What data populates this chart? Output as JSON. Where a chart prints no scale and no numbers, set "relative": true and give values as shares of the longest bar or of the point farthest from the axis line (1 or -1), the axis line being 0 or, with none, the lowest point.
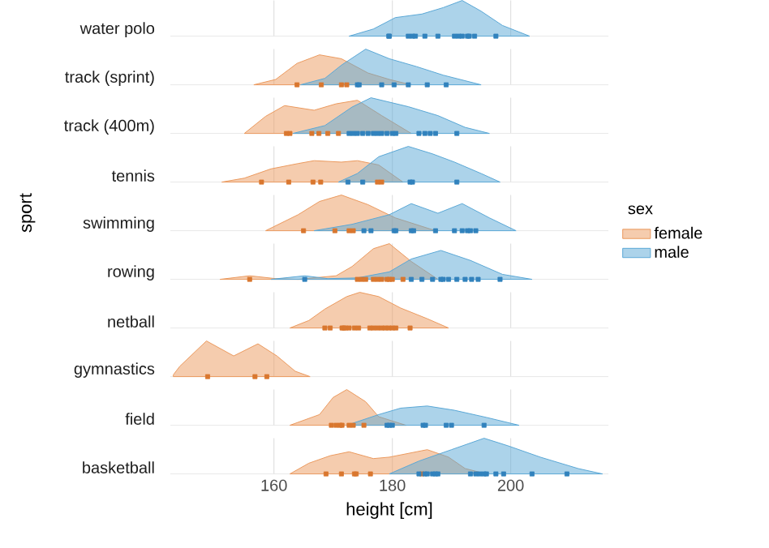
{
  "chart_data": [
    {
      "type": "area",
      "title": "water polo",
      "relative": true,
      "xlim": [
        142.5,
        216.5
      ],
      "xticks": [
        160,
        180,
        200
      ],
      "grid": "x",
      "tick_labels": false,
      "series": [
        {
          "color": "#5aa8d6",
          "x": [
            172.7,
            176.8,
            180.5,
            185,
            188.6,
            191.8,
            195,
            198.6,
            203.2
          ],
          "values": [
            0,
            0.2,
            0.52,
            0.62,
            0.8,
            1,
            0.7,
            0.3,
            0
          ]
        },
        {
          "type": "scatter",
          "marker": "square",
          "color": "#3182bd",
          "x": [
            179.4,
            179.5,
            182.7,
            183.4,
            183.9,
            185.5,
            187.7,
            190.5,
            191.2,
            191.8,
            192.7,
            193,
            193.9,
            197.5
          ],
          "values": [
            0,
            0,
            0,
            0,
            0,
            0,
            0,
            0,
            0,
            0,
            0,
            0,
            0,
            0
          ]
        }
      ]
    },
    {
      "type": "area",
      "title": "track (sprint)",
      "relative": true,
      "xlim": [
        142.5,
        216.5
      ],
      "xticks": [
        160,
        180,
        200
      ],
      "grid": "x",
      "tick_labels": false,
      "series": [
        {
          "color": "#eb9a5e",
          "x": [
            156.6,
            160.3,
            163.9,
            167.7,
            171.4,
            175.9,
            179.5,
            183.2
          ],
          "values": [
            0,
            0.15,
            0.6,
            0.84,
            0.73,
            0.33,
            0.15,
            0
          ]
        },
        {
          "color": "#5aa8d6",
          "x": [
            164.5,
            168.6,
            171.4,
            175.5,
            179.5,
            184.1,
            188.6,
            195
          ],
          "values": [
            0,
            0.18,
            0.55,
            1,
            0.73,
            0.51,
            0.27,
            0
          ]
        },
        {
          "type": "scatter",
          "marker": "square",
          "color": "#d9772f",
          "x": [
            163.9,
            168,
            171.4,
            172.3
          ],
          "values": [
            0,
            0,
            0,
            0
          ]
        },
        {
          "type": "scatter",
          "marker": "square",
          "color": "#3182bd",
          "x": [
            174.1,
            174.4,
            178.2,
            180.3,
            182.7,
            185.9,
            189.1
          ],
          "values": [
            0,
            0,
            0,
            0,
            0,
            0,
            0
          ]
        }
      ]
    },
    {
      "type": "area",
      "title": "track (400m)",
      "relative": true,
      "xlim": [
        142.5,
        216.5
      ],
      "xticks": [
        160,
        180,
        200
      ],
      "grid": "x",
      "tick_labels": false,
      "series": [
        {
          "color": "#eb9a5e",
          "x": [
            155,
            158.6,
            161.8,
            166.8,
            170.5,
            174.1,
            178.2,
            183.2
          ],
          "values": [
            0,
            0.48,
            0.78,
            0.65,
            0.83,
            0.93,
            0.5,
            0
          ]
        },
        {
          "color": "#5aa8d6",
          "x": [
            163.2,
            168.6,
            173.2,
            176.4,
            182.7,
            187.7,
            192.3,
            196.4
          ],
          "values": [
            0,
            0.22,
            0.74,
            1,
            0.75,
            0.5,
            0.17,
            0
          ]
        },
        {
          "type": "scatter",
          "marker": "square",
          "color": "#d9772f",
          "x": [
            162.1,
            162.7,
            166.4,
            167.6,
            169.1,
            170.9
          ],
          "values": [
            0,
            0,
            0,
            0,
            0,
            0
          ]
        },
        {
          "type": "scatter",
          "marker": "square",
          "color": "#3182bd",
          "x": [
            172.7,
            173.4,
            174.1,
            175,
            175.9,
            176.8,
            177.5,
            178.2,
            179.1,
            180,
            180.6,
            184.5,
            185.5,
            186.4,
            187.3,
            190.9
          ],
          "values": [
            0,
            0,
            0,
            0,
            0,
            0,
            0,
            0,
            0,
            0,
            0,
            0,
            0,
            0,
            0,
            0
          ]
        }
      ]
    },
    {
      "type": "area",
      "title": "tennis",
      "relative": true,
      "xlim": [
        142.5,
        216.5
      ],
      "xticks": [
        160,
        180,
        200
      ],
      "grid": "x",
      "tick_labels": false,
      "series": [
        {
          "color": "#eb9a5e",
          "x": [
            151.2,
            155,
            159.5,
            164.1,
            166.8,
            171.4,
            174.1,
            177.7,
            181.8
          ],
          "values": [
            0,
            0.11,
            0.37,
            0.52,
            0.6,
            0.56,
            0.6,
            0.48,
            0
          ]
        },
        {
          "color": "#5aa8d6",
          "x": [
            170.9,
            174.1,
            177.7,
            182.7,
            186.8,
            190.5,
            195,
            198.2
          ],
          "values": [
            0,
            0.24,
            0.71,
            1,
            0.79,
            0.56,
            0.24,
            0
          ]
        },
        {
          "type": "scatter",
          "marker": "square",
          "color": "#d9772f",
          "x": [
            157.9,
            162.5,
            166.6,
            167.9,
            177.5,
            178.2
          ],
          "values": [
            0,
            0,
            0,
            0,
            0,
            0
          ]
        },
        {
          "type": "scatter",
          "marker": "square",
          "color": "#3182bd",
          "x": [
            172.5,
            175,
            183,
            183.4,
            190.9
          ],
          "values": [
            0,
            0,
            0,
            0,
            0
          ]
        }
      ]
    },
    {
      "type": "area",
      "title": "swimming",
      "ylabel": "sport",
      "legend": "right",
      "legend_title": "sex",
      "relative": true,
      "xlim": [
        142.5,
        216.5
      ],
      "xticks": [
        160,
        180,
        200
      ],
      "grid": "x",
      "tick_labels": false,
      "series": [
        {
          "name": "female",
          "color": "#eb9a5e",
          "x": [
            158.6,
            164.1,
            167.7,
            171.4,
            175.9,
            180.5,
            187.3
          ],
          "values": [
            0,
            0.45,
            0.82,
            1,
            0.73,
            0.36,
            0
          ]
        },
        {
          "name": "male",
          "color": "#5aa8d6",
          "x": [
            166.8,
            173.2,
            179.5,
            183.2,
            187.7,
            191.8,
            196.4,
            200.9
          ],
          "values": [
            0,
            0.18,
            0.45,
            0.76,
            0.49,
            0.76,
            0.36,
            0
          ]
        },
        {
          "type": "scatter",
          "marker": "square",
          "color": "#d9772f",
          "x": [
            165,
            170.3,
            172.7,
            173.4
          ],
          "values": [
            0,
            0,
            0,
            0
          ]
        },
        {
          "type": "scatter",
          "marker": "square",
          "color": "#3182bd",
          "x": [
            175.2,
            176.4,
            180.3,
            180.6,
            183.2,
            183.6,
            187.3,
            190.5,
            191.8,
            192.7,
            193.2,
            194.1
          ],
          "values": [
            0,
            0,
            0,
            0,
            0,
            0,
            0,
            0,
            0,
            0,
            0,
            0
          ]
        }
      ]
    },
    {
      "type": "area",
      "title": "rowing",
      "relative": true,
      "xlim": [
        142.5,
        216.5
      ],
      "xticks": [
        160,
        180,
        200
      ],
      "grid": "x",
      "tick_labels": false,
      "series": [
        {
          "color": "#eb9a5e",
          "x": [
            150.9,
            155.9,
            160.3,
            164.1,
            170.5,
            173.2,
            176.8,
            179.5,
            183.2,
            187.7
          ],
          "values": [
            0,
            0.1,
            0.02,
            0,
            0.1,
            0.36,
            0.86,
            1,
            0.5,
            0
          ]
        },
        {
          "color": "#5aa8d6",
          "x": [
            159.5,
            165.2,
            169.1,
            174.1,
            179.5,
            183.2,
            188.2,
            193.2,
            198.6,
            203.6
          ],
          "values": [
            0,
            0.1,
            0.02,
            0.04,
            0.21,
            0.57,
            0.81,
            0.53,
            0.14,
            0
          ]
        },
        {
          "type": "scatter",
          "marker": "square",
          "color": "#d9772f",
          "x": [
            155.9,
            174.1,
            174.8,
            175.5,
            176.8,
            177.5,
            178.2,
            179.1,
            179.5,
            180,
            181.8
          ],
          "values": [
            0,
            0,
            0,
            0,
            0,
            0,
            0,
            0,
            0,
            0,
            0
          ]
        },
        {
          "type": "scatter",
          "marker": "square",
          "color": "#3182bd",
          "x": [
            165.2,
            183.2,
            185,
            186.8,
            188.2,
            188.6,
            189.5,
            190.9,
            192.3,
            193.4,
            194.5,
            198.2
          ],
          "values": [
            0,
            0,
            0,
            0,
            0,
            0,
            0,
            0,
            0,
            0,
            0,
            0
          ]
        }
      ]
    },
    {
      "type": "area",
      "title": "netball",
      "relative": true,
      "xlim": [
        142.5,
        216.5
      ],
      "xticks": [
        160,
        180,
        200
      ],
      "grid": "x",
      "tick_labels": false,
      "series": [
        {
          "color": "#eb9a5e",
          "x": [
            162.7,
            165.9,
            168.6,
            172.3,
            174.5,
            177.7,
            181.4,
            185.9,
            189.5
          ],
          "values": [
            0,
            0.21,
            0.53,
            0.88,
            1,
            0.88,
            0.56,
            0.26,
            0
          ]
        },
        {
          "type": "scatter",
          "marker": "square",
          "color": "#d9772f",
          "x": [
            168.6,
            169.5,
            171.5,
            171.8,
            172.1,
            172.7,
            173.6,
            174.3,
            176.2,
            176.8,
            177.5,
            178.2,
            178.8,
            179.4,
            180,
            180.6,
            183
          ],
          "values": [
            0,
            0,
            0,
            0,
            0,
            0,
            0,
            0,
            0,
            0,
            0,
            0,
            0,
            0,
            0,
            0,
            0
          ]
        }
      ]
    },
    {
      "type": "area",
      "title": "gymnastics",
      "relative": true,
      "xlim": [
        142.5,
        216.5
      ],
      "xticks": [
        160,
        180,
        200
      ],
      "grid": "x",
      "tick_labels": false,
      "series": [
        {
          "color": "#eb9a5e",
          "x": [
            143,
            144.1,
            148.6,
            153.2,
            157.3,
            160.5,
            163.6,
            166.1
          ],
          "values": [
            0.05,
            0.29,
            1,
            0.58,
            0.92,
            0.58,
            0.15,
            0
          ]
        },
        {
          "type": "scatter",
          "marker": "square",
          "color": "#d9772f",
          "x": [
            148.8,
            156.8,
            158.8
          ],
          "values": [
            0,
            0,
            0
          ]
        }
      ]
    },
    {
      "type": "area",
      "title": "field",
      "relative": true,
      "xlim": [
        142.5,
        216.5
      ],
      "xticks": [
        160,
        180,
        200
      ],
      "grid": "x",
      "tick_labels": false,
      "series": [
        {
          "color": "#eb9a5e",
          "x": [
            162.7,
            167.7,
            170,
            172.3,
            175.5,
            177.7,
            182.3
          ],
          "values": [
            0,
            0.3,
            0.78,
            1,
            0.66,
            0.24,
            0
          ]
        },
        {
          "color": "#5aa8d6",
          "x": [
            172.3,
            177.7,
            181.4,
            185.9,
            190.5,
            195.9,
            201.4
          ],
          "values": [
            0,
            0.3,
            0.48,
            0.54,
            0.42,
            0.22,
            0
          ]
        },
        {
          "type": "scatter",
          "marker": "square",
          "color": "#d9772f",
          "x": [
            169.7,
            170.5,
            171.2,
            171.5,
            172.7,
            173.4,
            175.2
          ],
          "values": [
            0,
            0,
            0,
            0,
            0,
            0,
            0
          ]
        },
        {
          "type": "scatter",
          "marker": "square",
          "color": "#3182bd",
          "x": [
            179.1,
            179.5,
            180,
            185.2,
            185.6,
            189.1,
            190,
            195.5
          ],
          "values": [
            0,
            0,
            0,
            0,
            0,
            0,
            0,
            0
          ]
        }
      ]
    },
    {
      "type": "area",
      "title": "basketball",
      "xlabel": "height [cm]",
      "relative": true,
      "xlim": [
        142.5,
        216.5
      ],
      "xticks": [
        160,
        180,
        200
      ],
      "grid": "x",
      "tick_labels": "x",
      "series": [
        {
          "color": "#eb9a5e",
          "x": [
            162.7,
            165.9,
            169.5,
            172.7,
            176.8,
            179.5,
            185.9,
            189.5,
            192.3,
            195.9
          ],
          "values": [
            0,
            0.3,
            0.51,
            0.62,
            0.43,
            0.47,
            0.68,
            0.47,
            0.15,
            0
          ]
        },
        {
          "color": "#5aa8d6",
          "x": [
            179.5,
            184.5,
            190,
            195.5,
            199.5,
            205,
            211.4,
            215.5
          ],
          "values": [
            0,
            0.36,
            0.68,
            1,
            0.79,
            0.47,
            0.15,
            0
          ]
        },
        {
          "type": "scatter",
          "marker": "square",
          "color": "#d9772f",
          "x": [
            168.8,
            171.4,
            173.6,
            173.9,
            176.3,
            185
          ],
          "values": [
            0,
            0,
            0,
            0,
            0,
            0
          ]
        },
        {
          "type": "scatter",
          "marker": "square",
          "color": "#3182bd",
          "x": [
            184.5,
            185.5,
            185.9,
            186.8,
            187.3,
            187.7,
            193.2,
            194.1,
            194.8,
            195.5,
            195.9,
            197.5,
            198.8,
            203.6,
            209.5
          ],
          "values": [
            0,
            0,
            0,
            0,
            0,
            0,
            0,
            0,
            0,
            0,
            0,
            0,
            0,
            0,
            0
          ]
        }
      ]
    }
  ]
}
